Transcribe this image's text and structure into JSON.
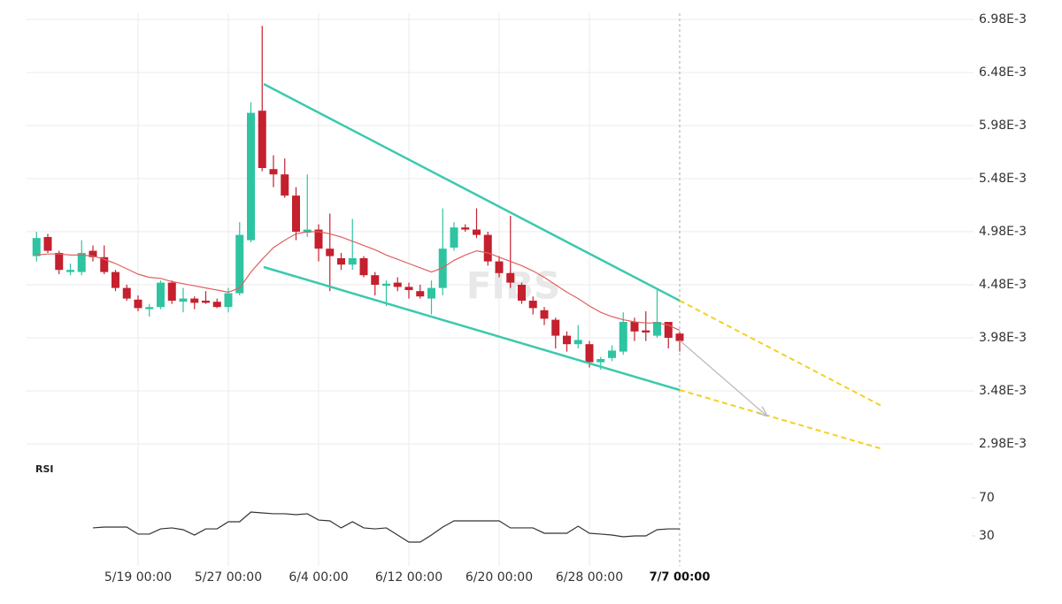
{
  "chart_data": {
    "type": "candlestick",
    "categories": [
      null,
      null,
      null,
      null,
      null,
      null,
      null,
      null,
      null,
      "5/19 00:00",
      null,
      null,
      null,
      null,
      null,
      null,
      null,
      "5/27 00:00",
      null,
      null,
      null,
      null,
      null,
      null,
      null,
      "6/4 00:00",
      null,
      null,
      null,
      null,
      null,
      null,
      null,
      "6/12 00:00",
      null,
      null,
      null,
      null,
      null,
      null,
      null,
      "6/20 00:00",
      null,
      null,
      null,
      null,
      null,
      null,
      null,
      "6/28 00:00",
      null,
      null,
      null,
      null,
      null,
      null,
      null,
      "7/7 00:00"
    ],
    "open": [
      0.00475,
      0.00493,
      0.00478,
      0.0046,
      0.0046,
      0.0048,
      0.00474,
      0.0046,
      0.00445,
      0.00434,
      0.00425,
      0.00427,
      0.0045,
      0.00432,
      0.00435,
      0.00433,
      0.00432,
      0.00427,
      0.0044,
      0.0049,
      0.00612,
      0.00557,
      0.00552,
      0.00532,
      0.00497,
      0.005,
      0.00482,
      0.00473,
      0.00467,
      0.00473,
      0.00457,
      0.00447,
      0.0045,
      0.00446,
      0.00442,
      0.00435,
      0.00445,
      0.00483,
      0.00502,
      0.005,
      0.00495,
      0.0047,
      0.00459,
      0.00448,
      0.00433,
      0.00424,
      0.00415,
      0.004,
      0.00392,
      0.00392,
      0.00375,
      0.00379,
      0.00385,
      0.00413,
      0.00405,
      0.004,
      0.00413,
      0.00402
    ],
    "high": [
      0.00498,
      0.00496,
      0.0048,
      0.00468,
      0.0049,
      0.00485,
      0.00485,
      0.00462,
      0.00448,
      0.00438,
      0.0043,
      0.00452,
      0.00452,
      0.00445,
      0.00437,
      0.00442,
      0.00435,
      0.00445,
      0.00507,
      0.0062,
      0.00692,
      0.0057,
      0.00567,
      0.0054,
      0.00552,
      0.00505,
      0.00515,
      0.00478,
      0.0051,
      0.00475,
      0.0046,
      0.00452,
      0.00455,
      0.0045,
      0.00448,
      0.00452,
      0.0052,
      0.00507,
      0.00505,
      0.0052,
      0.00498,
      0.00475,
      0.00513,
      0.0045,
      0.00437,
      0.00427,
      0.00417,
      0.00404,
      0.0041,
      0.00395,
      0.0038,
      0.00391,
      0.00422,
      0.00417,
      0.00423,
      0.00443,
      0.00413,
      0.00404
    ],
    "low": [
      0.0047,
      0.00478,
      0.00458,
      0.00457,
      0.00457,
      0.0047,
      0.00458,
      0.00442,
      0.00433,
      0.00423,
      0.00418,
      0.00425,
      0.0043,
      0.00422,
      0.00425,
      0.0043,
      0.00426,
      0.00422,
      0.00438,
      0.00488,
      0.00555,
      0.0054,
      0.0053,
      0.0049,
      0.00493,
      0.0047,
      0.00442,
      0.00462,
      0.00462,
      0.00455,
      0.00438,
      0.00428,
      0.00442,
      0.00435,
      0.00435,
      0.0042,
      0.00438,
      0.0048,
      0.00498,
      0.00492,
      0.00466,
      0.00455,
      0.00445,
      0.0043,
      0.0042,
      0.0041,
      0.00388,
      0.00385,
      0.00388,
      0.0037,
      0.00368,
      0.00376,
      0.00382,
      0.00395,
      0.00395,
      0.00398,
      0.00388,
      0.00385
    ],
    "close": [
      0.00492,
      0.0048,
      0.00462,
      0.00462,
      0.00478,
      0.00474,
      0.0046,
      0.00445,
      0.00435,
      0.00426,
      0.00427,
      0.0045,
      0.00433,
      0.00435,
      0.00431,
      0.00431,
      0.00427,
      0.0044,
      0.00495,
      0.0061,
      0.00558,
      0.00552,
      0.00532,
      0.00498,
      0.005,
      0.00482,
      0.00475,
      0.00467,
      0.00473,
      0.00457,
      0.00448,
      0.00449,
      0.00446,
      0.00443,
      0.00437,
      0.00445,
      0.00482,
      0.00502,
      0.005,
      0.00495,
      0.0047,
      0.00459,
      0.0045,
      0.00433,
      0.00426,
      0.00416,
      0.004,
      0.00392,
      0.00396,
      0.00375,
      0.00378,
      0.00386,
      0.00413,
      0.00404,
      0.00403,
      0.00413,
      0.00398,
      0.00395
    ],
    "up_color": "#2ec4a2",
    "down_color": "#c4202e",
    "ylim": [
      0.0028,
      0.0071
    ],
    "yticks": [
      {
        "value": 0.00698,
        "label": "6.98E-3"
      },
      {
        "value": 0.00648,
        "label": "6.48E-3"
      },
      {
        "value": 0.00598,
        "label": "5.98E-3"
      },
      {
        "value": 0.00548,
        "label": "5.48E-3"
      },
      {
        "value": 0.00498,
        "label": "4.98E-3"
      },
      {
        "value": 0.00448,
        "label": "4.48E-3"
      },
      {
        "value": 0.00398,
        "label": "3.98E-3"
      },
      {
        "value": 0.00348,
        "label": "3.48E-3"
      },
      {
        "value": 0.00298,
        "label": "2.98E-3"
      }
    ],
    "grid": true,
    "watermark": "FIBS",
    "ma": {
      "color": "#e06060",
      "values": [
        0.00476,
        0.00477,
        0.00477,
        0.00476,
        0.00476,
        0.00475,
        0.00472,
        0.00468,
        0.00463,
        0.00458,
        0.00455,
        0.00454,
        0.00451,
        0.00449,
        0.00447,
        0.00445,
        0.00443,
        0.00441,
        0.00445,
        0.0046,
        0.00472,
        0.00483,
        0.0049,
        0.00496,
        0.00498,
        0.00498,
        0.00496,
        0.00493,
        0.00489,
        0.00485,
        0.00481,
        0.00476,
        0.00472,
        0.00468,
        0.00464,
        0.0046,
        0.00464,
        0.00471,
        0.00476,
        0.0048,
        0.00478,
        0.00474,
        0.0047,
        0.00466,
        0.00461,
        0.00455,
        0.00448,
        0.00441,
        0.00435,
        0.00428,
        0.00422,
        0.00418,
        0.00415,
        0.00413,
        0.00412,
        0.00412,
        0.0041,
        0.00405
      ]
    },
    "rsi": {
      "title": "RSI",
      "color": "#333333",
      "ylim": [
        12,
        87
      ],
      "yticks": [
        70,
        30
      ],
      "values": [
        null,
        null,
        null,
        null,
        null,
        38.4,
        39.3,
        39.3,
        39.3,
        31.9,
        31.9,
        37.4,
        38.4,
        36.5,
        30.9,
        37.4,
        37.4,
        44.9,
        44.9,
        55.1,
        54.2,
        53.3,
        53.3,
        52.3,
        53.3,
        46.7,
        45.8,
        38.4,
        44.9,
        38.4,
        37.4,
        38.4,
        30.9,
        23.5,
        23.5,
        30.9,
        39.3,
        45.8,
        45.8,
        45.8,
        45.8,
        45.8,
        38.4,
        38.4,
        38.4,
        32.8,
        32.8,
        32.8,
        40.2,
        32.8,
        31.9,
        30.9,
        29.1,
        30.0,
        30.0,
        36.5,
        37.4,
        37.4
      ]
    }
  }
}
